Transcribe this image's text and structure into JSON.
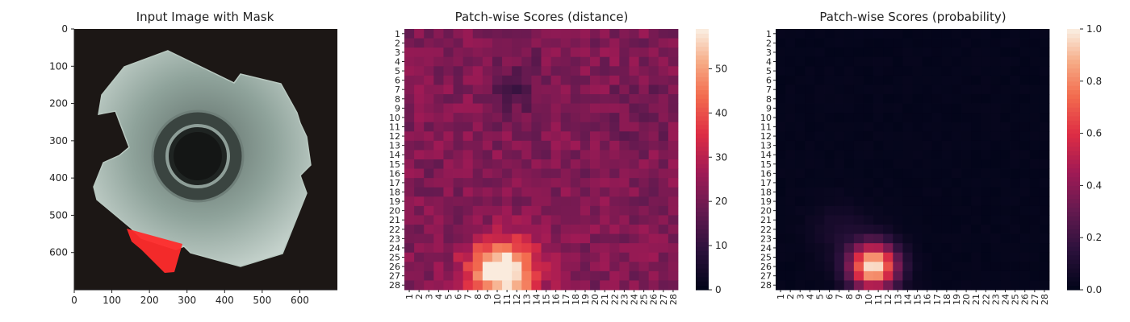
{
  "figure": {
    "background": "#ffffff"
  },
  "chart_data": [
    {
      "type": "image",
      "title": "Input Image with Mask",
      "xlim": [
        0,
        700
      ],
      "ylim": [
        700,
        0
      ],
      "x_ticks": [
        0,
        100,
        200,
        300,
        400,
        500,
        600
      ],
      "y_ticks": [
        0,
        100,
        200,
        300,
        400,
        500,
        600
      ],
      "image": {
        "description_icon": "metal-washer-photo",
        "background_color": "#1c1715",
        "part_color": "#8fa39b",
        "mask_color": "#ff2b2b"
      }
    },
    {
      "type": "heatmap",
      "title": "Patch-wise Scores (distance)",
      "rows": 28,
      "cols": 28,
      "colormap": "rocket",
      "vmin": 0,
      "vmax": 59,
      "colorbar_ticks": [
        0,
        10,
        20,
        30,
        40,
        50
      ],
      "background_level": 22,
      "hotspots": [
        {
          "row": 25.5,
          "col": 9.5,
          "peak": 57,
          "sigma": 2.4
        },
        {
          "row": 21.5,
          "col": 6.5,
          "peak": 12,
          "sigma": 3.0
        },
        {
          "row": 8.5,
          "col": 23.5,
          "peak": 10,
          "sigma": 2.5
        },
        {
          "row": 5.5,
          "col": 11.0,
          "peak": 6,
          "sigma": 2.0
        }
      ]
    },
    {
      "type": "heatmap",
      "title": "Patch-wise Scores (probability)",
      "rows": 28,
      "cols": 28,
      "colormap": "rocket",
      "vmin": 0.0,
      "vmax": 1.0,
      "colorbar_ticks": [
        "0.0",
        "0.2",
        "0.4",
        "0.6",
        "0.8",
        "1.0"
      ],
      "background_level": 0.0,
      "hotspots": [
        {
          "row": 25.0,
          "col": 9.5,
          "peak": 1.0,
          "sigma": 1.7
        },
        {
          "row": 21.0,
          "col": 6.0,
          "peak": 0.08,
          "sigma": 2.0
        }
      ]
    }
  ]
}
